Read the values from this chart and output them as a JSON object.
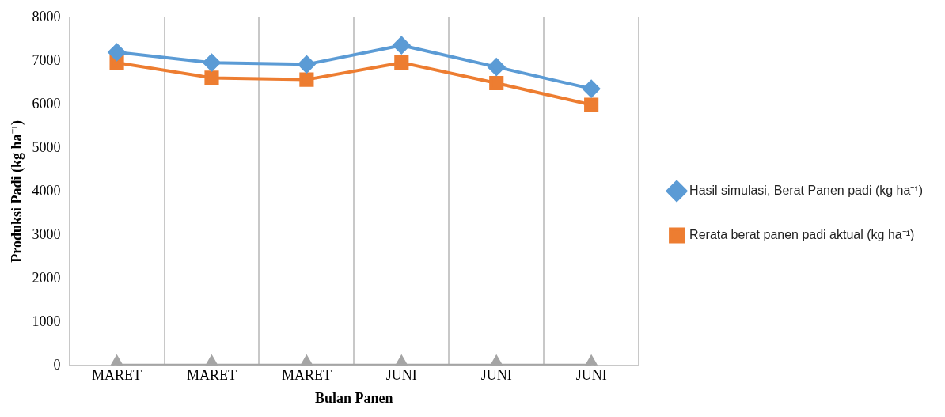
{
  "chart_data": {
    "type": "line",
    "xlabel": "Bulan Panen",
    "ylabel": "Produksi Padi (kg ha⁻¹)",
    "categories": [
      "MARET",
      "MARET",
      "MARET",
      "JUNI",
      "JUNI",
      "JUNI"
    ],
    "series": [
      {
        "name": "Hasil simulasi, Berat Panen padi (kg ha⁻¹)",
        "color": "#5b9bd5",
        "marker": "diamond",
        "values": [
          7200,
          6960,
          6920,
          7360,
          6860,
          6360
        ]
      },
      {
        "name": "Rerata berat panen padi aktual (kg ha⁻¹)",
        "color": "#ed7d31",
        "marker": "square",
        "values": [
          6960,
          6610,
          6570,
          6960,
          6490,
          5990
        ]
      },
      {
        "color": "#a5a5a5",
        "marker": "triangle",
        "values": [
          0,
          0,
          0,
          0,
          0,
          0
        ]
      }
    ],
    "ylim": [
      0,
      8000
    ],
    "yticks": [
      0,
      1000,
      2000,
      3000,
      4000,
      5000,
      6000,
      7000,
      8000
    ],
    "grid": "x",
    "legend": "right"
  }
}
